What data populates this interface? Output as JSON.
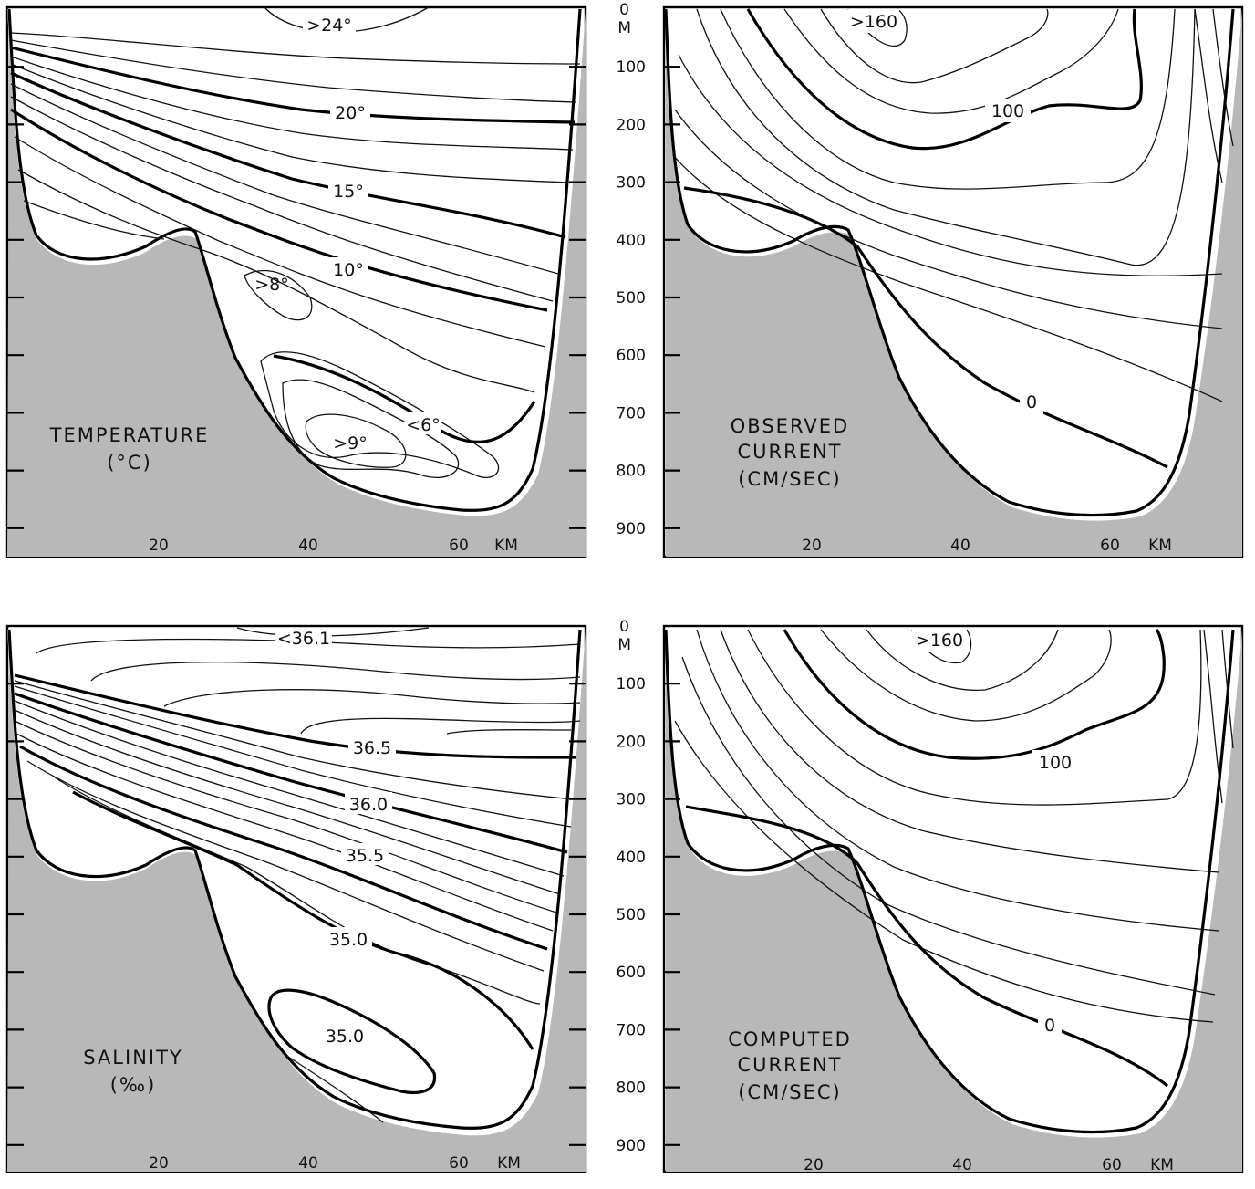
{
  "depth_axis": {
    "unit": "M",
    "ticks": [
      "0",
      "100",
      "200",
      "300",
      "400",
      "500",
      "600",
      "700",
      "800",
      "900"
    ]
  },
  "distance_axis": {
    "unit": "KM",
    "ticks": [
      "20",
      "40",
      "60"
    ]
  },
  "panels": [
    {
      "id": "temperature",
      "title_line1": "TEMPERATURE",
      "title_line2": "(°C)",
      "title_line3": "",
      "contour_labels": [
        ">24°",
        "20°",
        "15°",
        "10°",
        ">8°",
        "<6°",
        ">9°"
      ]
    },
    {
      "id": "observed",
      "title_line1": "OBSERVED",
      "title_line2": "CURRENT",
      "title_line3": "(CM/SEC)",
      "contour_labels": [
        ">160",
        "100",
        "0"
      ]
    },
    {
      "id": "salinity",
      "title_line1": "SALINITY",
      "title_line2": "(‰)",
      "title_line3": "",
      "contour_labels": [
        "<36.1",
        "36.5",
        "36.0",
        "35.5",
        "35.0",
        "35.0"
      ]
    },
    {
      "id": "computed",
      "title_line1": "COMPUTED",
      "title_line2": "CURRENT",
      "title_line3": "(CM/SEC)",
      "contour_labels": [
        ">160",
        "100",
        "0"
      ]
    }
  ]
}
